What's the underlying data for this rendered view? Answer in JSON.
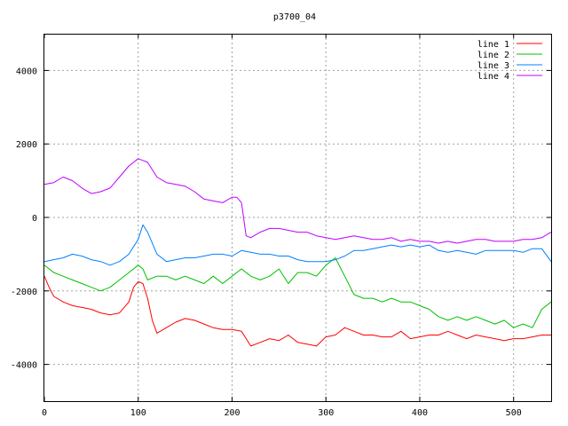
{
  "chart_data": {
    "type": "line",
    "title": "p3700_04",
    "xlabel": "",
    "ylabel": "",
    "xlim": [
      0,
      540
    ],
    "ylim": [
      -5000,
      5000
    ],
    "xticks": [
      0,
      100,
      200,
      300,
      400,
      500
    ],
    "yticks": [
      -4000,
      -2000,
      0,
      2000,
      4000
    ],
    "grid": true,
    "legend_position": "top-right",
    "series": [
      {
        "name": "line 1",
        "color": "#ff0000",
        "x": [
          0,
          5,
          10,
          20,
          30,
          40,
          50,
          60,
          70,
          80,
          90,
          95,
          100,
          105,
          110,
          115,
          120,
          130,
          140,
          150,
          160,
          170,
          180,
          190,
          200,
          210,
          220,
          230,
          240,
          250,
          260,
          270,
          280,
          290,
          300,
          310,
          320,
          330,
          340,
          350,
          360,
          370,
          380,
          390,
          400,
          410,
          420,
          430,
          440,
          450,
          460,
          470,
          480,
          490,
          500,
          510,
          520,
          530,
          540
        ],
        "y": [
          -1600,
          -1900,
          -2150,
          -2300,
          -2400,
          -2450,
          -2500,
          -2600,
          -2650,
          -2600,
          -2300,
          -1900,
          -1750,
          -1800,
          -2200,
          -2800,
          -3150,
          -3000,
          -2850,
          -2750,
          -2800,
          -2900,
          -3000,
          -3050,
          -3050,
          -3100,
          -3500,
          -3400,
          -3300,
          -3350,
          -3200,
          -3400,
          -3450,
          -3500,
          -3250,
          -3200,
          -3000,
          -3100,
          -3200,
          -3200,
          -3250,
          -3250,
          -3100,
          -3300,
          -3250,
          -3200,
          -3200,
          -3100,
          -3200,
          -3300,
          -3200,
          -3250,
          -3300,
          -3350,
          -3300,
          -3300,
          -3250,
          -3200,
          -3200
        ]
      },
      {
        "name": "line 2",
        "color": "#00c000",
        "x": [
          0,
          10,
          20,
          30,
          40,
          50,
          60,
          70,
          80,
          90,
          100,
          105,
          110,
          120,
          130,
          140,
          150,
          160,
          170,
          180,
          190,
          200,
          210,
          220,
          230,
          240,
          250,
          260,
          270,
          280,
          290,
          300,
          310,
          320,
          330,
          340,
          350,
          360,
          370,
          380,
          390,
          400,
          410,
          420,
          430,
          440,
          450,
          460,
          470,
          480,
          490,
          500,
          510,
          520,
          530,
          540
        ],
        "y": [
          -1300,
          -1500,
          -1600,
          -1700,
          -1800,
          -1900,
          -2000,
          -1900,
          -1700,
          -1500,
          -1300,
          -1400,
          -1700,
          -1600,
          -1600,
          -1700,
          -1600,
          -1700,
          -1800,
          -1600,
          -1800,
          -1600,
          -1400,
          -1600,
          -1700,
          -1600,
          -1400,
          -1800,
          -1500,
          -1500,
          -1600,
          -1300,
          -1100,
          -1600,
          -2100,
          -2200,
          -2200,
          -2300,
          -2200,
          -2300,
          -2300,
          -2400,
          -2500,
          -2700,
          -2800,
          -2700,
          -2800,
          -2700,
          -2800,
          -2900,
          -2800,
          -3000,
          -2900,
          -3000,
          -2500,
          -2300
        ]
      },
      {
        "name": "line 3",
        "color": "#0080ff",
        "x": [
          0,
          10,
          20,
          30,
          40,
          50,
          60,
          70,
          80,
          90,
          100,
          105,
          110,
          120,
          130,
          140,
          150,
          160,
          170,
          180,
          190,
          200,
          210,
          220,
          230,
          240,
          250,
          260,
          270,
          280,
          290,
          300,
          310,
          320,
          330,
          340,
          350,
          360,
          370,
          380,
          390,
          400,
          410,
          420,
          430,
          440,
          450,
          460,
          470,
          480,
          490,
          500,
          510,
          520,
          530,
          540
        ],
        "y": [
          -1200,
          -1150,
          -1100,
          -1000,
          -1050,
          -1150,
          -1200,
          -1300,
          -1200,
          -1000,
          -600,
          -200,
          -400,
          -1000,
          -1200,
          -1150,
          -1100,
          -1100,
          -1050,
          -1000,
          -1000,
          -1050,
          -900,
          -950,
          -1000,
          -1000,
          -1050,
          -1050,
          -1150,
          -1200,
          -1200,
          -1200,
          -1150,
          -1050,
          -900,
          -900,
          -850,
          -800,
          -750,
          -800,
          -750,
          -800,
          -750,
          -900,
          -950,
          -900,
          -950,
          -1000,
          -900,
          -900,
          -900,
          -900,
          -950,
          -850,
          -850,
          -1200
        ]
      },
      {
        "name": "line 4",
        "color": "#c000ff",
        "x": [
          0,
          10,
          20,
          30,
          40,
          50,
          60,
          70,
          80,
          90,
          100,
          105,
          110,
          120,
          130,
          140,
          150,
          160,
          170,
          180,
          190,
          200,
          205,
          210,
          215,
          220,
          230,
          240,
          250,
          260,
          270,
          280,
          290,
          300,
          310,
          320,
          330,
          340,
          350,
          360,
          370,
          380,
          390,
          400,
          410,
          420,
          430,
          440,
          450,
          460,
          470,
          480,
          490,
          500,
          510,
          520,
          530,
          540
        ],
        "y": [
          900,
          950,
          1100,
          1000,
          800,
          650,
          700,
          800,
          1100,
          1400,
          1600,
          1550,
          1500,
          1100,
          950,
          900,
          850,
          700,
          500,
          450,
          400,
          550,
          550,
          400,
          -500,
          -550,
          -400,
          -300,
          -300,
          -350,
          -400,
          -400,
          -500,
          -550,
          -600,
          -550,
          -500,
          -550,
          -600,
          -600,
          -550,
          -650,
          -600,
          -650,
          -650,
          -700,
          -650,
          -700,
          -650,
          -600,
          -600,
          -650,
          -650,
          -650,
          -600,
          -600,
          -550,
          -400
        ]
      }
    ]
  }
}
